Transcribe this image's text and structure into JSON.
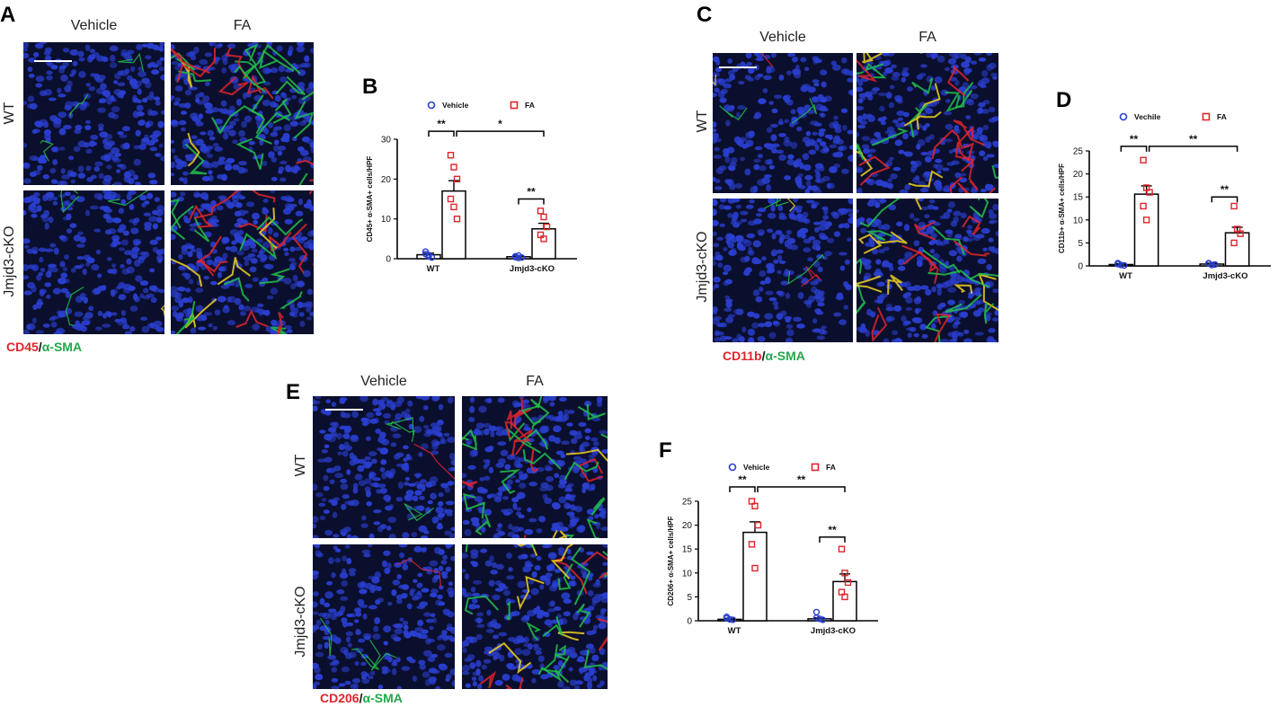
{
  "panels": {
    "A": {
      "letter": "A",
      "col_labels": [
        "Vehicle",
        "FA"
      ],
      "row_labels": [
        "WT",
        "Jmjd3-cKO"
      ],
      "stain": {
        "red": "CD45",
        "sep": "/",
        "green": "α-SMA"
      }
    },
    "B": {
      "letter": "B"
    },
    "C": {
      "letter": "C",
      "col_labels": [
        "Vehicle",
        "FA"
      ],
      "row_labels": [
        "WT",
        "Jmjd3-cKO"
      ],
      "stain": {
        "red": "CD11b",
        "sep": "/",
        "green": "α-SMA"
      }
    },
    "D": {
      "letter": "D"
    },
    "E": {
      "letter": "E",
      "col_labels": [
        "Vehicle",
        "FA"
      ],
      "row_labels": [
        "WT",
        "Jmjd3-cKO"
      ],
      "stain": {
        "red": "CD206",
        "sep": "/",
        "green": "α-SMA"
      }
    },
    "F": {
      "letter": "F"
    }
  },
  "colors": {
    "nuclei": "#2a3fd0",
    "background": "#0b0f2e",
    "red": "#e0242b",
    "green": "#22c04a",
    "yellow": "#f0d020",
    "vehicle": "#2a3fcf",
    "fa": "#e0242b"
  },
  "chart_data": [
    {
      "id": "B",
      "type": "bar",
      "categories": [
        "WT",
        "Jmjd3-cKO"
      ],
      "legend": [
        "Vehicle",
        "FA"
      ],
      "ylabel": "CD45+ α-SMA+ cells/HPF",
      "ylim": [
        0,
        30
      ],
      "yticks": [
        0,
        10,
        20,
        30
      ],
      "series": [
        {
          "name": "Vehicle",
          "values": [
            1,
            0.5
          ],
          "sem": [
            0.4,
            0.2
          ],
          "points": [
            [
              1.8,
              0.6,
              0.3,
              1.2,
              0.9
            ],
            [
              0.4,
              0.8,
              0.3,
              0.6,
              0.2
            ]
          ]
        },
        {
          "name": "FA",
          "values": [
            17,
            7.5
          ],
          "sem": [
            2.6,
            1.4
          ],
          "points": [
            [
              26,
              23,
              20,
              15,
              13,
              10
            ],
            [
              12,
              10.5,
              8,
              6,
              5
            ]
          ]
        }
      ],
      "significance": [
        {
          "label": "**",
          "from": [
            0,
            0
          ],
          "to": [
            0,
            1
          ],
          "y": 32
        },
        {
          "label": "*",
          "from": [
            0,
            1
          ],
          "to": [
            1,
            1
          ],
          "y": 32
        },
        {
          "label": "**",
          "from": [
            1,
            0
          ],
          "to": [
            1,
            1
          ],
          "y": 15
        }
      ]
    },
    {
      "id": "D",
      "type": "bar",
      "categories": [
        "WT",
        "Jmjd3-cKO"
      ],
      "legend": [
        "Vechile",
        "FA"
      ],
      "ylabel": "CD11b+ α-SMA+ cells/HPF",
      "ylim": [
        0,
        25
      ],
      "yticks": [
        0,
        5,
        10,
        15,
        20,
        25
      ],
      "series": [
        {
          "name": "Vechile",
          "values": [
            0.3,
            0.4
          ],
          "sem": [
            0.2,
            0.2
          ],
          "points": [
            [
              0.6,
              0.2,
              0.1,
              0.4
            ],
            [
              0.5,
              0.2,
              0.3,
              0.6
            ]
          ]
        },
        {
          "name": "FA",
          "values": [
            15.6,
            7.2
          ],
          "sem": [
            1.8,
            1.2
          ],
          "points": [
            [
              23,
              17,
              16,
              13,
              10
            ],
            [
              13,
              8,
              7,
              5
            ]
          ]
        }
      ],
      "significance": [
        {
          "label": "**",
          "from": [
            0,
            0
          ],
          "to": [
            0,
            1
          ],
          "y": 26
        },
        {
          "label": "**",
          "from": [
            0,
            1
          ],
          "to": [
            1,
            1
          ],
          "y": 26
        },
        {
          "label": "**",
          "from": [
            1,
            0
          ],
          "to": [
            1,
            1
          ],
          "y": 15
        }
      ]
    },
    {
      "id": "F",
      "type": "bar",
      "categories": [
        "WT",
        "Jmjd3-cKO"
      ],
      "legend": [
        "Vehicle",
        "FA"
      ],
      "ylabel": "CD206+ α-SMA+ cells/HPF",
      "ylim": [
        0,
        25
      ],
      "yticks": [
        0,
        5,
        10,
        15,
        20,
        25
      ],
      "series": [
        {
          "name": "Vehicle",
          "values": [
            0.3,
            0.4
          ],
          "sem": [
            0.2,
            0.2
          ],
          "points": [
            [
              0.8,
              0.3,
              0.2,
              0.5
            ],
            [
              1.8,
              0.4,
              0.2,
              0.6
            ]
          ]
        },
        {
          "name": "FA",
          "values": [
            18.5,
            8.2
          ],
          "sem": [
            2.2,
            1.6
          ],
          "points": [
            [
              25,
              24,
              20,
              16,
              11
            ],
            [
              15,
              10,
              8,
              6,
              5
            ]
          ]
        }
      ],
      "significance": [
        {
          "label": "**",
          "from": [
            0,
            0
          ],
          "to": [
            0,
            1
          ],
          "y": 28
        },
        {
          "label": "**",
          "from": [
            0,
            1
          ],
          "to": [
            1,
            1
          ],
          "y": 28
        },
        {
          "label": "**",
          "from": [
            1,
            0
          ],
          "to": [
            1,
            1
          ],
          "y": 17.5
        }
      ]
    }
  ]
}
